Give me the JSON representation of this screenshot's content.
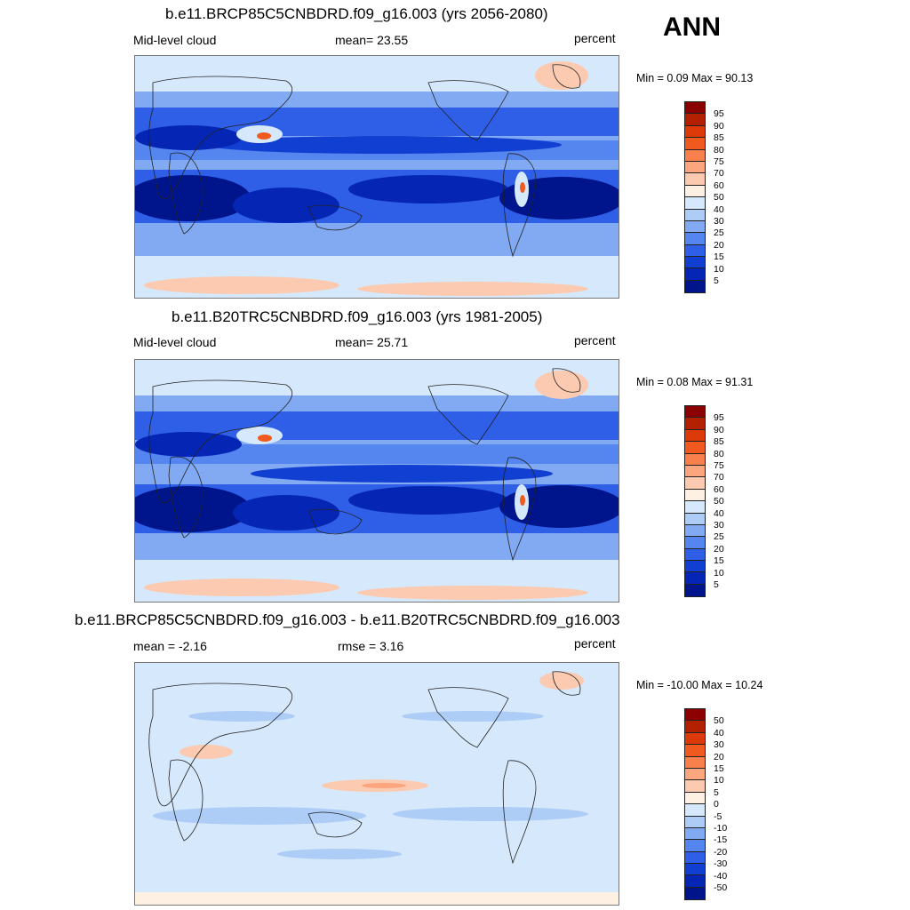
{
  "season": "ANN",
  "panels": [
    {
      "title": "b.e11.BRCP85C5CNBDRD.f09_g16.003 (yrs 2056-2080)",
      "left_label": "Mid-level cloud",
      "center_label": "mean=  23.55",
      "right_label": "percent",
      "minmax": "Min =   0.09 Max =  90.13",
      "colorbar_ticks": [
        "95",
        "90",
        "85",
        "80",
        "75",
        "70",
        "60",
        "50",
        "40",
        "30",
        "25",
        "20",
        "15",
        "10",
        "5"
      ]
    },
    {
      "title": "b.e11.B20TRC5CNBDRD.f09_g16.003 (yrs 1981-2005)",
      "left_label": "Mid-level cloud",
      "center_label": "mean=  25.71",
      "right_label": "percent",
      "minmax": "Min =   0.08 Max =  91.31",
      "colorbar_ticks": [
        "95",
        "90",
        "85",
        "80",
        "75",
        "70",
        "60",
        "50",
        "40",
        "30",
        "25",
        "20",
        "15",
        "10",
        "5"
      ]
    },
    {
      "title": "b.e11.BRCP85C5CNBDRD.f09_g16.003 - b.e11.B20TRC5CNBDRD.f09_g16.003",
      "left_label": "mean =  -2.16",
      "center_label": "rmse =   3.16",
      "right_label": "percent",
      "minmax": "Min = -10.00 Max =  10.24",
      "colorbar_ticks": [
        "50",
        "40",
        "30",
        "20",
        "15",
        "10",
        "5",
        "0",
        "-5",
        "-10",
        "-15",
        "-20",
        "-30",
        "-40",
        "-50"
      ]
    }
  ],
  "colorbar_colors": [
    "#8b0000",
    "#b22000",
    "#dc3a08",
    "#f05a1e",
    "#f7804c",
    "#fba67e",
    "#fccab0",
    "#fff0e4",
    "#d6e8fb",
    "#aecdf6",
    "#82aaf2",
    "#5585ee",
    "#2e5fe6",
    "#113fd2",
    "#0526b4",
    "#00148c"
  ],
  "chart_data": [
    {
      "type": "heatmap",
      "title": "b.e11.BRCP85C5CNBDRD.f09_g16.003 (yrs 2056-2080)",
      "variable": "Mid-level cloud",
      "units": "percent",
      "mean": 23.55,
      "min": 0.09,
      "max": 90.13,
      "contour_levels": [
        5,
        10,
        15,
        20,
        25,
        30,
        40,
        50,
        60,
        70,
        75,
        80,
        85,
        90,
        95
      ]
    },
    {
      "type": "heatmap",
      "title": "b.e11.B20TRC5CNBDRD.f09_g16.003 (yrs 1981-2005)",
      "variable": "Mid-level cloud",
      "units": "percent",
      "mean": 25.71,
      "min": 0.08,
      "max": 91.31,
      "contour_levels": [
        5,
        10,
        15,
        20,
        25,
        30,
        40,
        50,
        60,
        70,
        75,
        80,
        85,
        90,
        95
      ]
    },
    {
      "type": "heatmap",
      "title": "b.e11.BRCP85C5CNBDRD.f09_g16.003 - b.e11.B20TRC5CNBDRD.f09_g16.003",
      "units": "percent",
      "mean": -2.16,
      "rmse": 3.16,
      "min": -10.0,
      "max": 10.24,
      "contour_levels": [
        -50,
        -40,
        -30,
        -20,
        -15,
        -10,
        -5,
        0,
        5,
        10,
        15,
        20,
        30,
        40,
        50
      ]
    }
  ]
}
